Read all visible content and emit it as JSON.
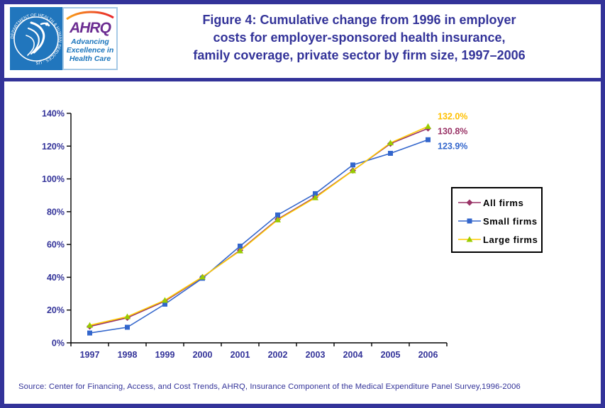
{
  "header": {
    "hhs_seal_text": "DEPARTMENT OF HEALTH & HUMAN SERVICES · USA",
    "ahrq_name": "AHRQ",
    "ahrq_tagline_lines": [
      "Advancing",
      "Excellence in",
      "Health Care"
    ],
    "title_lines": [
      "Figure 4: Cumulative change from 1996 in employer",
      "costs for employer-sponsored health insurance,",
      "family coverage, private sector by firm size, 1997–2006"
    ]
  },
  "chart_data": {
    "type": "line",
    "categories": [
      "1997",
      "1998",
      "1999",
      "2000",
      "2001",
      "2002",
      "2003",
      "2004",
      "2005",
      "2006"
    ],
    "series": [
      {
        "name": "All firms",
        "color": "#993366",
        "marker": "diamond",
        "marker_color": "#993366",
        "values": [
          10.0,
          15.3,
          25.4,
          40.0,
          56.5,
          75.4,
          89.0,
          105.1,
          121.5,
          130.8
        ],
        "end_label": "130.8%",
        "end_label_color": "#993366"
      },
      {
        "name": "Small firms",
        "color": "#3366CC",
        "marker": "square",
        "marker_color": "#3366CC",
        "values": [
          6.0,
          9.5,
          23.6,
          39.4,
          59.0,
          78.0,
          91.0,
          108.5,
          115.6,
          123.9
        ],
        "end_label": "123.9%",
        "end_label_color": "#3366CC"
      },
      {
        "name": "Large firms",
        "color": "#FFCC00",
        "marker": "triangle",
        "marker_color": "#99CC00",
        "values": [
          10.7,
          16.0,
          26.0,
          40.2,
          56.1,
          75.0,
          88.5,
          105.0,
          122.0,
          132.0
        ],
        "end_label": "132.0%",
        "end_label_color": "#FFC000"
      }
    ],
    "ylim": [
      0,
      140
    ],
    "ytick_step": 20,
    "ytick_suffix": "%",
    "grid": false,
    "legend_position": "right",
    "axis_color": "#000000",
    "tick_label_color": "#333399"
  },
  "source": "Source: Center for Financing, Access, and Cost Trends, AHRQ, Insurance Component of the Medical Expenditure Panel Survey,1996-2006",
  "colors": {
    "navy": "#333399",
    "hhs_blue": "#2176BD",
    "ahrq_purple": "#6B2C91",
    "ahrq_blue": "#1B75BC"
  }
}
